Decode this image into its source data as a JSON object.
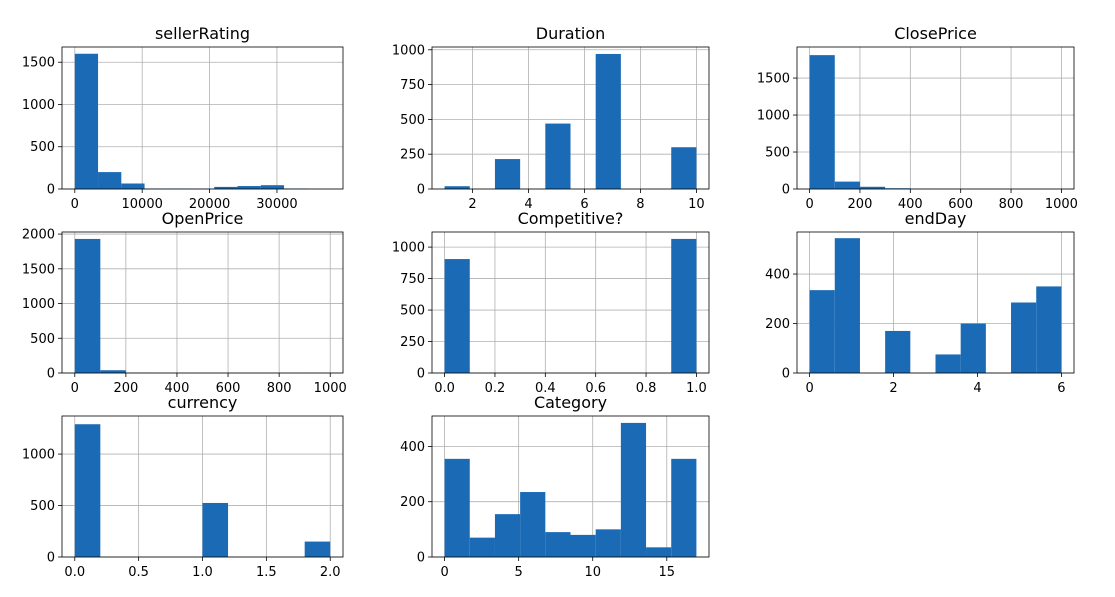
{
  "chart_data": [
    {
      "type": "bar",
      "title": "sellerRating",
      "xlim": [
        -1900,
        39800
      ],
      "ylim": [
        0,
        1680
      ],
      "xticks": [
        0,
        10000,
        20000,
        30000
      ],
      "xtick_labels": [
        "0",
        "10000",
        "20000",
        "30000"
      ],
      "yticks": [
        0,
        500,
        1000,
        1500
      ],
      "ytick_labels": [
        "0",
        "500",
        "1000",
        "1500"
      ],
      "grid": true,
      "color": "#1a6ab5",
      "bins": [
        [
          0,
          3450,
          1600
        ],
        [
          3450,
          6900,
          200
        ],
        [
          6900,
          10350,
          65
        ],
        [
          10350,
          13800,
          5
        ],
        [
          13800,
          17250,
          5
        ],
        [
          17250,
          20700,
          3
        ],
        [
          20700,
          24150,
          25
        ],
        [
          24150,
          27600,
          35
        ],
        [
          27600,
          31050,
          45
        ],
        [
          31050,
          34500,
          5
        ]
      ]
    },
    {
      "type": "bar",
      "title": "Duration",
      "xlim": [
        0.55,
        10.45
      ],
      "ylim": [
        0,
        1020
      ],
      "xticks": [
        2,
        4,
        6,
        8,
        10
      ],
      "xtick_labels": [
        "2",
        "4",
        "6",
        "8",
        "10"
      ],
      "yticks": [
        0,
        250,
        500,
        750,
        1000
      ],
      "ytick_labels": [
        "0",
        "250",
        "500",
        "750",
        "1000"
      ],
      "grid": true,
      "color": "#1a6ab5",
      "bins": [
        [
          1,
          1.9,
          20
        ],
        [
          2.8,
          3.7,
          215
        ],
        [
          4.6,
          5.5,
          470
        ],
        [
          6.4,
          7.3,
          970
        ],
        [
          9.1,
          10,
          300
        ]
      ]
    },
    {
      "type": "bar",
      "title": "ClosePrice",
      "xlim": [
        -50,
        1050
      ],
      "ylim": [
        0,
        1920
      ],
      "xticks": [
        0,
        200,
        400,
        600,
        800,
        1000
      ],
      "xtick_labels": [
        "0",
        "200",
        "400",
        "600",
        "800",
        "1000"
      ],
      "yticks": [
        0,
        500,
        1000,
        1500
      ],
      "ytick_labels": [
        "0",
        "500",
        "1000",
        "1500"
      ],
      "grid": true,
      "color": "#1a6ab5",
      "bins": [
        [
          0,
          100,
          1810
        ],
        [
          100,
          200,
          100
        ],
        [
          200,
          300,
          30
        ],
        [
          300,
          400,
          10
        ],
        [
          400,
          500,
          3
        ],
        [
          500,
          600,
          2
        ],
        [
          600,
          700,
          1
        ],
        [
          700,
          800,
          1
        ]
      ]
    },
    {
      "type": "bar",
      "title": "OpenPrice",
      "xlim": [
        -50,
        1050
      ],
      "ylim": [
        0,
        2030
      ],
      "xticks": [
        0,
        200,
        400,
        600,
        800,
        1000
      ],
      "xtick_labels": [
        "0",
        "200",
        "400",
        "600",
        "800",
        "1000"
      ],
      "yticks": [
        0,
        500,
        1000,
        1500,
        2000
      ],
      "ytick_labels": [
        "0",
        "500",
        "1000",
        "1500",
        "2000"
      ],
      "grid": true,
      "color": "#1a6ab5",
      "bins": [
        [
          0,
          100,
          1930
        ],
        [
          100,
          200,
          40
        ],
        [
          200,
          300,
          3
        ],
        [
          300,
          400,
          1
        ],
        [
          900,
          1000,
          1
        ]
      ]
    },
    {
      "type": "bar",
      "title": "Competitive?",
      "xlim": [
        -0.05,
        1.05
      ],
      "ylim": [
        0,
        1120
      ],
      "xticks": [
        0,
        0.2,
        0.4,
        0.6,
        0.8,
        1.0
      ],
      "xtick_labels": [
        "0.0",
        "0.2",
        "0.4",
        "0.6",
        "0.8",
        "1.0"
      ],
      "yticks": [
        0,
        250,
        500,
        750,
        1000
      ],
      "ytick_labels": [
        "0",
        "250",
        "500",
        "750",
        "1000"
      ],
      "grid": true,
      "color": "#1a6ab5",
      "bins": [
        [
          0,
          0.1,
          905
        ],
        [
          0.9,
          1.0,
          1065
        ]
      ]
    },
    {
      "type": "bar",
      "title": "endDay",
      "xlim": [
        -0.3,
        6.3
      ],
      "ylim": [
        0,
        570
      ],
      "xticks": [
        0,
        2,
        4,
        6
      ],
      "xtick_labels": [
        "0",
        "2",
        "4",
        "6"
      ],
      "yticks": [
        0,
        200,
        400
      ],
      "ytick_labels": [
        "0",
        "200",
        "400"
      ],
      "grid": true,
      "color": "#1a6ab5",
      "bins": [
        [
          0,
          0.6,
          335
        ],
        [
          0.6,
          1.2,
          545
        ],
        [
          1.8,
          2.4,
          170
        ],
        [
          3.0,
          3.6,
          75
        ],
        [
          3.6,
          4.2,
          200
        ],
        [
          4.8,
          5.4,
          285
        ],
        [
          5.4,
          6.0,
          350
        ]
      ]
    },
    {
      "type": "bar",
      "title": "currency",
      "xlim": [
        -0.1,
        2.1
      ],
      "ylim": [
        0,
        1370
      ],
      "xticks": [
        0,
        0.5,
        1.0,
        1.5,
        2.0
      ],
      "xtick_labels": [
        "0.0",
        "0.5",
        "1.0",
        "1.5",
        "2.0"
      ],
      "yticks": [
        0,
        500,
        1000
      ],
      "ytick_labels": [
        "0",
        "500",
        "1000"
      ],
      "grid": true,
      "color": "#1a6ab5",
      "bins": [
        [
          0,
          0.2,
          1290
        ],
        [
          1.0,
          1.2,
          525
        ],
        [
          1.8,
          2.0,
          150
        ]
      ]
    },
    {
      "type": "bar",
      "title": "Category",
      "xlim": [
        -0.85,
        17.85
      ],
      "ylim": [
        0,
        510
      ],
      "xticks": [
        0,
        5,
        10,
        15
      ],
      "xtick_labels": [
        "0",
        "5",
        "10",
        "15"
      ],
      "yticks": [
        0,
        200,
        400
      ],
      "ytick_labels": [
        "0",
        "200",
        "400"
      ],
      "grid": true,
      "color": "#1a6ab5",
      "bins": [
        [
          0,
          1.7,
          355
        ],
        [
          1.7,
          3.4,
          70
        ],
        [
          3.4,
          5.1,
          155
        ],
        [
          5.1,
          6.8,
          235
        ],
        [
          6.8,
          8.5,
          90
        ],
        [
          8.5,
          10.2,
          80
        ],
        [
          10.2,
          11.9,
          100
        ],
        [
          11.9,
          13.6,
          485
        ],
        [
          13.6,
          15.3,
          35
        ],
        [
          15.3,
          17.0,
          355
        ]
      ]
    }
  ]
}
